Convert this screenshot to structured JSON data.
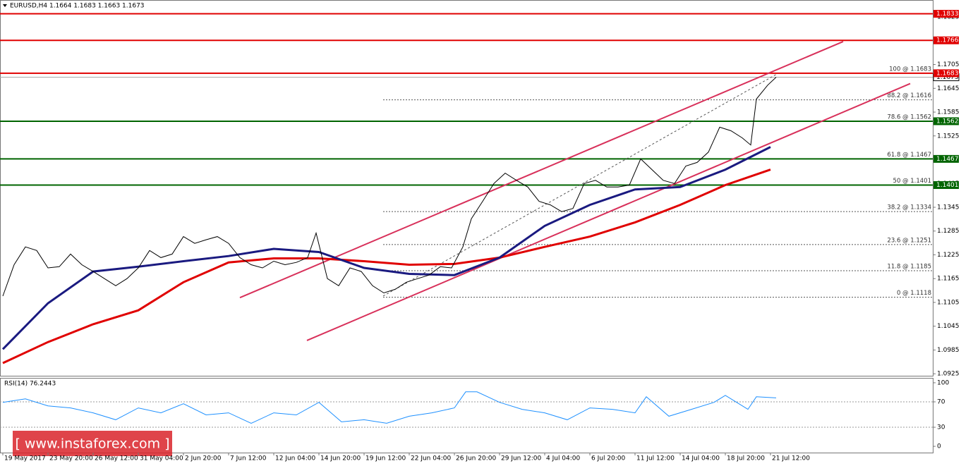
{
  "chart_data": [
    {
      "type": "line",
      "title": "EURUSD,H4  1.1664 1.1683 1.1663 1.1673",
      "xlim": [
        -1,
        329.5
      ],
      "ylim": [
        1.092,
        1.1866
      ],
      "grid": false,
      "xticks": [
        {
          "value": 0,
          "label": "19 May 2017"
        },
        {
          "value": 16,
          "label": "23 May 20:00"
        },
        {
          "value": 32,
          "label": "26 May 12:00"
        },
        {
          "value": 48,
          "label": "31 May 04:00"
        },
        {
          "value": 64,
          "label": "2 Jun 20:00"
        },
        {
          "value": 80,
          "label": "7 Jun 12:00"
        },
        {
          "value": 96,
          "label": "12 Jun 04:00"
        },
        {
          "value": 112,
          "label": "14 Jun 20:00"
        },
        {
          "value": 128,
          "label": "19 Jun 12:00"
        },
        {
          "value": 144,
          "label": "22 Jun 04:00"
        },
        {
          "value": 160,
          "label": "26 Jun 20:00"
        },
        {
          "value": 176,
          "label": "29 Jun 12:00"
        },
        {
          "value": 192,
          "label": "4 Jul 04:00"
        },
        {
          "value": 208,
          "label": "6 Jul 20:00"
        },
        {
          "value": 224,
          "label": "11 Jul 12:00"
        },
        {
          "value": 240,
          "label": "14 Jul 04:00"
        },
        {
          "value": 256,
          "label": "18 Jul 20:00"
        },
        {
          "value": 272,
          "label": "21 Jul 12:00"
        }
      ],
      "yticks": [
        1.1825,
        1.1705,
        1.1645,
        1.1585,
        1.1525,
        1.1465,
        1.1405,
        1.1345,
        1.1285,
        1.1225,
        1.1165,
        1.1105,
        1.1045,
        1.0985,
        1.0925
      ],
      "series": [
        {
          "color": "#000000",
          "width": 1,
          "x": [
            0,
            4,
            8,
            12,
            16,
            20,
            24,
            28,
            32,
            36,
            40,
            44,
            48,
            52,
            56,
            60,
            64,
            68,
            72,
            76,
            80,
            84,
            88,
            92,
            96,
            100,
            104,
            108,
            111,
            115,
            119,
            123,
            127,
            131,
            135,
            139,
            143,
            147,
            151,
            155,
            159,
            163,
            166,
            170,
            174,
            178,
            182,
            186,
            190,
            194,
            198,
            202,
            206,
            210,
            214,
            218,
            222,
            226,
            230,
            234,
            238,
            242,
            246,
            250,
            254,
            258,
            262,
            265,
            267,
            271,
            274
          ],
          "values": [
            1.1121,
            1.12,
            1.1245,
            1.1236,
            1.1192,
            1.1195,
            1.1227,
            1.12,
            1.1183,
            1.1165,
            1.1147,
            1.1165,
            1.1192,
            1.1236,
            1.1218,
            1.1227,
            1.1271,
            1.1254,
            1.1263,
            1.1271,
            1.1254,
            1.1218,
            1.12,
            1.1192,
            1.1209,
            1.12,
            1.1206,
            1.1218,
            1.128,
            1.1165,
            1.1147,
            1.1192,
            1.1183,
            1.1147,
            1.1129,
            1.1138,
            1.1156,
            1.1165,
            1.1174,
            1.1195,
            1.1192,
            1.1245,
            1.1316,
            1.136,
            1.1405,
            1.1431,
            1.1413,
            1.1396,
            1.136,
            1.1351,
            1.1334,
            1.1342,
            1.1405,
            1.1413,
            1.1396,
            1.1396,
            1.1401,
            1.1467,
            1.144,
            1.1413,
            1.1405,
            1.1449,
            1.1458,
            1.1484,
            1.1547,
            1.1538,
            1.152,
            1.1502,
            1.1618,
            1.1653,
            1.1673
          ]
        },
        {
          "color": "#1a1a80",
          "width": 3,
          "x": [
            0,
            16,
            32,
            48,
            64,
            80,
            96,
            112,
            128,
            144,
            160,
            176,
            192,
            208,
            224,
            240,
            256,
            272
          ],
          "values": [
            1.0987,
            1.1103,
            1.1183,
            1.1195,
            1.1209,
            1.1222,
            1.124,
            1.1232,
            1.1192,
            1.1177,
            1.1174,
            1.1218,
            1.1298,
            1.1351,
            1.139,
            1.1396,
            1.144,
            1.1497
          ]
        },
        {
          "color": "#e00000",
          "width": 3,
          "x": [
            0,
            16,
            32,
            48,
            64,
            80,
            96,
            112,
            128,
            144,
            160,
            176,
            192,
            208,
            224,
            240,
            256,
            272
          ],
          "values": [
            1.0952,
            1.1005,
            1.105,
            1.1085,
            1.1156,
            1.1206,
            1.1216,
            1.1216,
            1.1209,
            1.12,
            1.1202,
            1.1218,
            1.1245,
            1.1271,
            1.1307,
            1.1351,
            1.1401,
            1.144
          ]
        }
      ],
      "trendlines": [
        {
          "x": [
            84,
            297.75
          ],
          "values": [
            1.1117,
            1.1763
          ],
          "color": "#d8305a"
        },
        {
          "x": [
            107.75,
            321.5
          ],
          "values": [
            1.1009,
            1.1657
          ],
          "color": "#d8305a"
        },
        {
          "x": [
            134.75,
            274
          ],
          "values": [
            1.1121,
            1.168
          ],
          "color": "#555555",
          "dashed": true
        }
      ],
      "levels": [
        {
          "value": 1.1833,
          "color": "#e00000"
        },
        {
          "value": 1.1766,
          "color": "#e00000"
        },
        {
          "value": 1.1683,
          "color": "#e00000"
        },
        {
          "value": 1.1562,
          "color": "#006400"
        },
        {
          "value": 1.1467,
          "color": "#006400"
        },
        {
          "value": 1.1401,
          "color": "#006400"
        }
      ],
      "current_price": 1.1673,
      "fib_start": 134.75,
      "fib": [
        {
          "label": "100 @ 1.1683",
          "value": 1.1683
        },
        {
          "label": "88.2 @ 1.1616",
          "value": 1.1616
        },
        {
          "label": "78.6 @ 1.1562",
          "value": 1.1562
        },
        {
          "label": "61.8 @ 1.1467",
          "value": 1.1467
        },
        {
          "label": "50 @ 1.1401",
          "value": 1.1401
        },
        {
          "label": "38.2 @ 1.1334",
          "value": 1.1334
        },
        {
          "label": "23.6 @ 1.1251",
          "value": 1.1251
        },
        {
          "label": "11.8 @ 1.1185",
          "value": 1.1185
        },
        {
          "label": "0 @ 1.1118",
          "value": 1.1118
        }
      ]
    },
    {
      "type": "line",
      "title": "RSI(14) 76.2443",
      "xlim": [
        -1,
        329.5
      ],
      "ylim": [
        -9.9,
        106.6
      ],
      "yticks": [
        100,
        70,
        30,
        0
      ],
      "levels": [
        70,
        30
      ],
      "color": "#1e90ff",
      "x": [
        0,
        8,
        16,
        24,
        32,
        40,
        48,
        56,
        64,
        72,
        80,
        88,
        96,
        104,
        112,
        120,
        128,
        136,
        144,
        152,
        160,
        164,
        168,
        176,
        184,
        192,
        200,
        208,
        216,
        224,
        228,
        236,
        244,
        252,
        256,
        264,
        267,
        274
      ],
      "values": [
        69.2,
        74.7,
        63.7,
        60.4,
        52.7,
        41.8,
        60.4,
        52.7,
        67.0,
        49.5,
        52.7,
        36.3,
        52.7,
        49.5,
        69.2,
        38.5,
        41.8,
        36.3,
        47.3,
        52.7,
        60.4,
        85.7,
        85.7,
        69.2,
        58.2,
        52.7,
        41.8,
        60.4,
        58.2,
        52.7,
        78.0,
        47.3,
        58.2,
        69.2,
        80.2,
        58.2,
        78.0,
        76.2
      ]
    }
  ],
  "watermark": "[ www.instaforex.com ]"
}
